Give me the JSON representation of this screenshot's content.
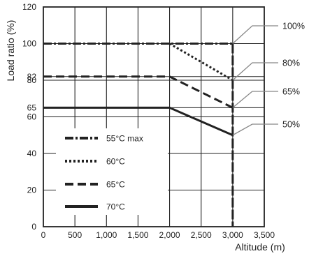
{
  "chart_data": {
    "type": "line",
    "xlabel": "Altitude (m)",
    "ylabel": "Load ratio (%)",
    "xlim": [
      0,
      3500
    ],
    "ylim": [
      0,
      120
    ],
    "x_ticks": [
      "0",
      "500",
      "1,000",
      "1,500",
      "2,000",
      "2,500",
      "3,000",
      "3,500"
    ],
    "x_tick_values": [
      0,
      500,
      1000,
      1500,
      2000,
      2500,
      3000,
      3500
    ],
    "y_ticks": [
      "0",
      "20",
      "40",
      "60",
      "80",
      "100",
      "120"
    ],
    "y_tick_values": [
      0,
      20,
      40,
      60,
      80,
      100,
      120
    ],
    "y_extra_ticks": [
      {
        "label": "65",
        "value": 65
      },
      {
        "label": "82",
        "value": 82
      }
    ],
    "grid": true,
    "legend_placement": "lower-left",
    "series": [
      {
        "name": "55°C max",
        "style": "dash-dot",
        "x": [
          0,
          2000,
          3000
        ],
        "y": [
          100,
          100,
          100
        ],
        "callout": "100%"
      },
      {
        "name": "60°C",
        "style": "dotted",
        "x": [
          2000,
          3000
        ],
        "y": [
          100,
          80
        ],
        "callout": "80%"
      },
      {
        "name": "65°C",
        "style": "dashed",
        "x": [
          0,
          2000,
          3000
        ],
        "y": [
          82,
          82,
          65
        ],
        "callout": "65%"
      },
      {
        "name": "70°C",
        "style": "solid",
        "x": [
          0,
          2000,
          3000
        ],
        "y": [
          65,
          65,
          50
        ],
        "callout": "50%"
      }
    ],
    "vertical_marker": {
      "x": 3000,
      "style": "dashed"
    },
    "colors": {
      "line": "#222222",
      "grid": "#222222",
      "callout_line": "#888888"
    }
  }
}
